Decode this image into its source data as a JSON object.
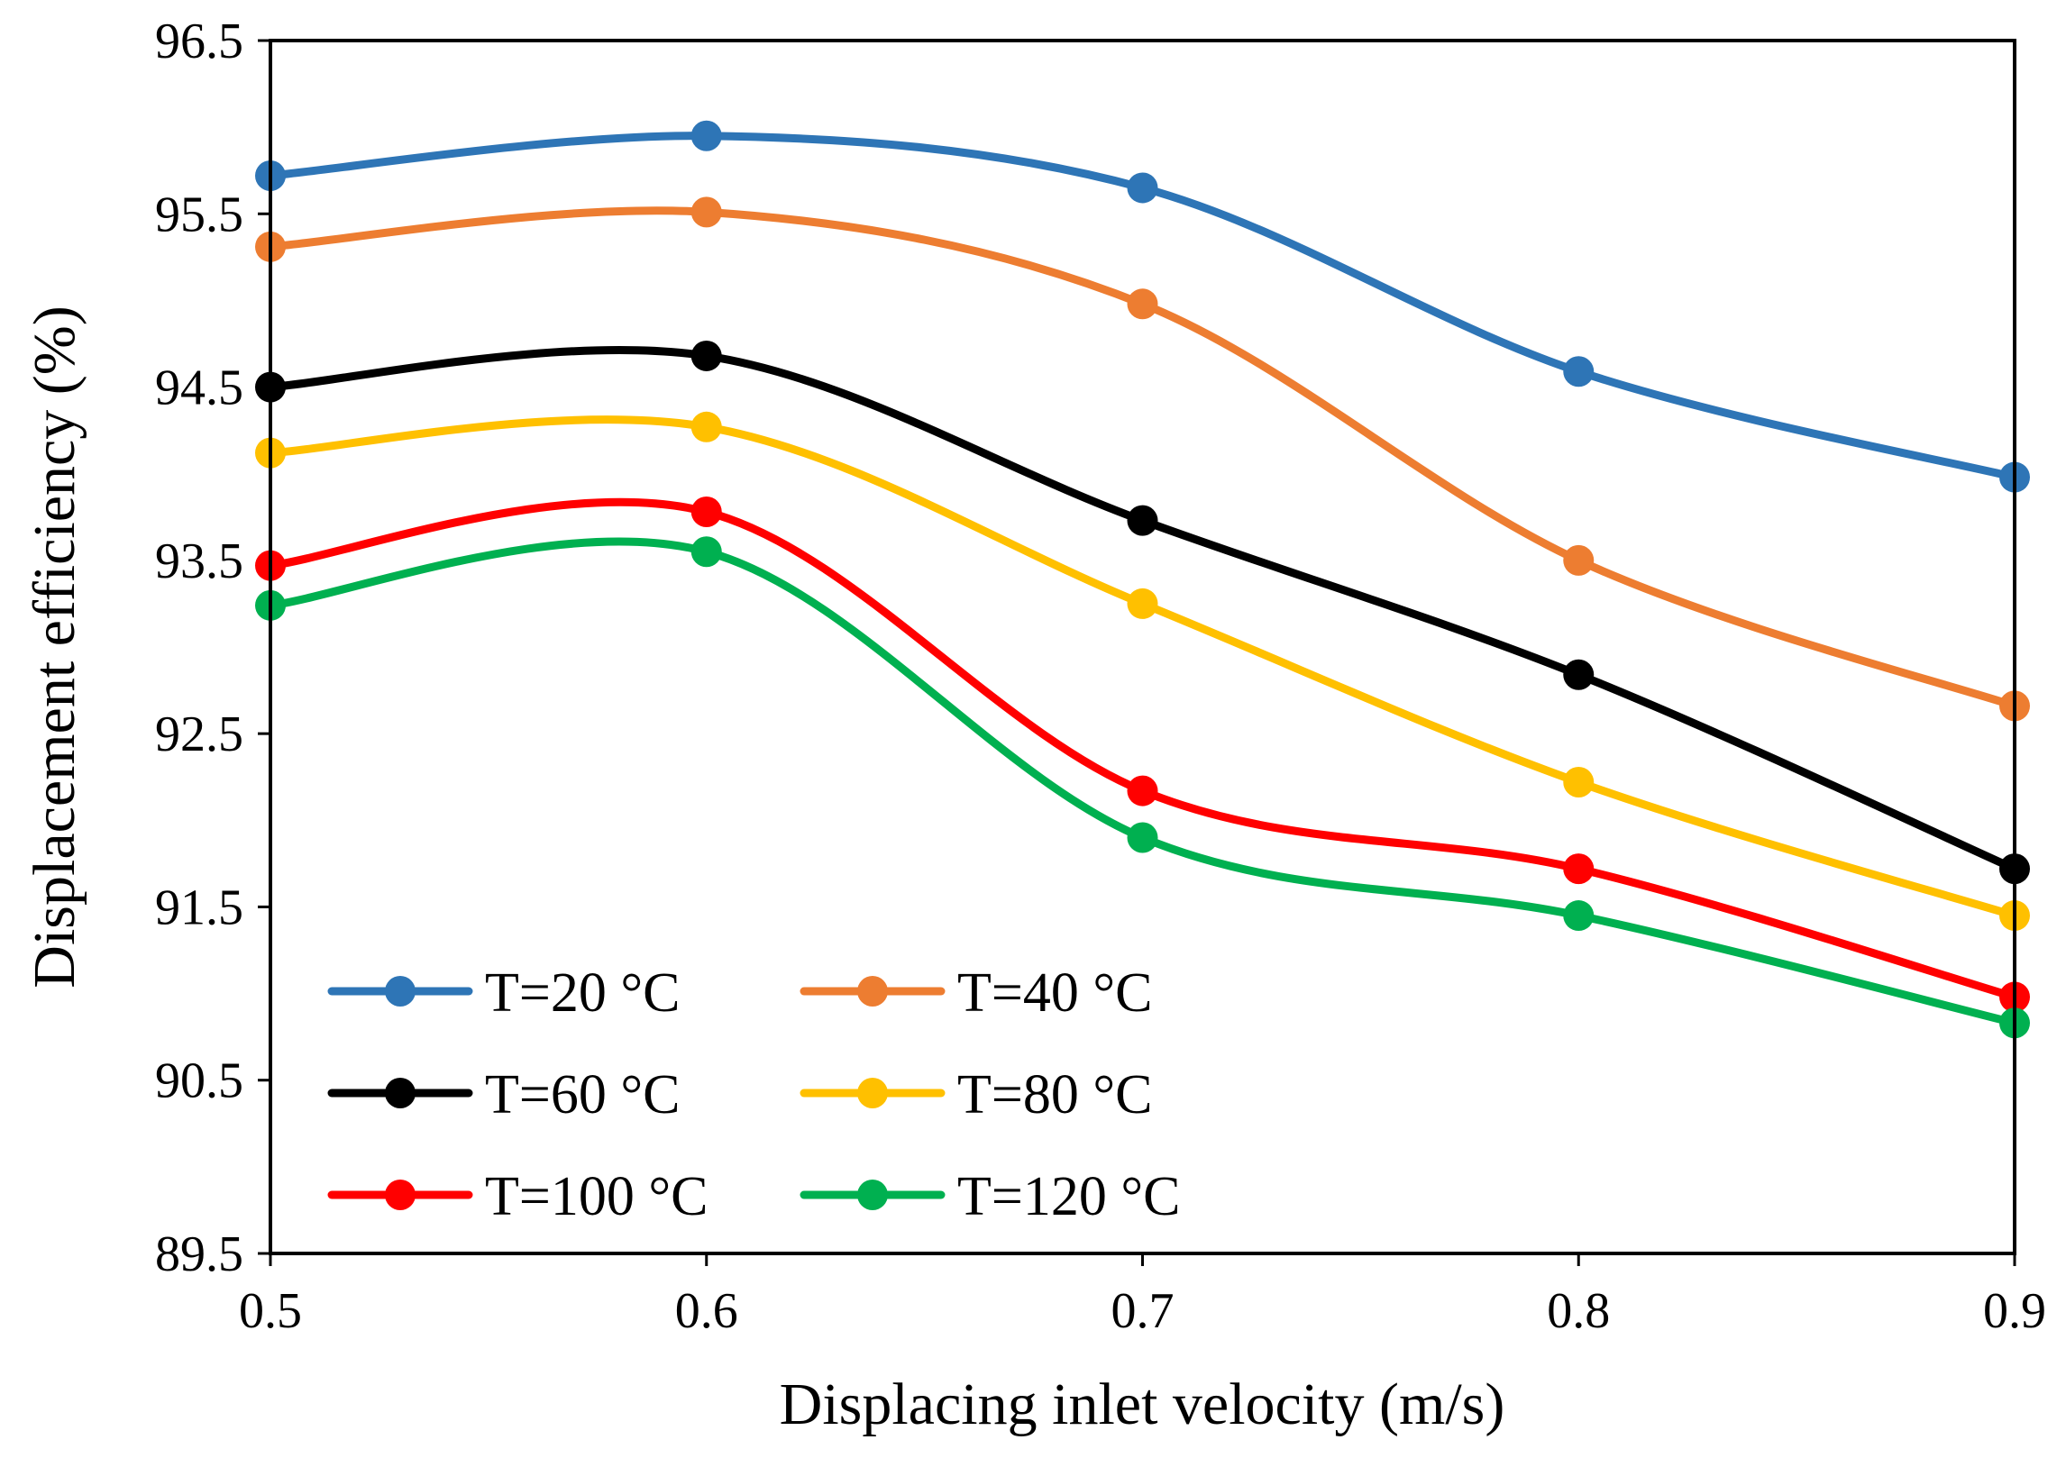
{
  "chart_data": {
    "type": "line",
    "title": "",
    "xlabel": "Displacing inlet velocity (m/s)",
    "ylabel": "Displacement efficiency (%)",
    "xlim": [
      0.5,
      0.9
    ],
    "ylim": [
      89.5,
      96.5
    ],
    "xticks": [
      0.5,
      0.6,
      0.7,
      0.8,
      0.9
    ],
    "xtick_labels": [
      "0.5",
      "0.6",
      "0.7",
      "0.8",
      "0.9"
    ],
    "yticks": [
      89.5,
      90.5,
      91.5,
      92.5,
      93.5,
      94.5,
      95.5,
      96.5
    ],
    "ytick_labels": [
      "89.5",
      "90.5",
      "91.5",
      "92.5",
      "93.5",
      "94.5",
      "95.5",
      "96.5"
    ],
    "grid": false,
    "smooth": true,
    "legend_position": "bottom-left",
    "x": [
      0.5,
      0.6,
      0.7,
      0.8,
      0.9
    ],
    "series": [
      {
        "name": "T=20 °C",
        "color": "#2E75B6",
        "values": [
          95.72,
          95.95,
          95.65,
          94.59,
          93.98
        ]
      },
      {
        "name": "T=40 °C",
        "color": "#ED7D31",
        "values": [
          95.31,
          95.51,
          94.98,
          93.5,
          92.66
        ]
      },
      {
        "name": "T=60 °C",
        "color": "#000000",
        "values": [
          94.5,
          94.68,
          93.73,
          92.84,
          91.72
        ]
      },
      {
        "name": "T=80 °C",
        "color": "#FFC000",
        "values": [
          94.12,
          94.27,
          93.25,
          92.22,
          91.45
        ]
      },
      {
        "name": "T=100 °C",
        "color": "#FF0000",
        "values": [
          93.47,
          93.78,
          92.17,
          91.72,
          90.98
        ]
      },
      {
        "name": "T=120 °C",
        "color": "#00B050",
        "values": [
          93.24,
          93.55,
          91.9,
          91.45,
          90.83
        ]
      }
    ]
  }
}
